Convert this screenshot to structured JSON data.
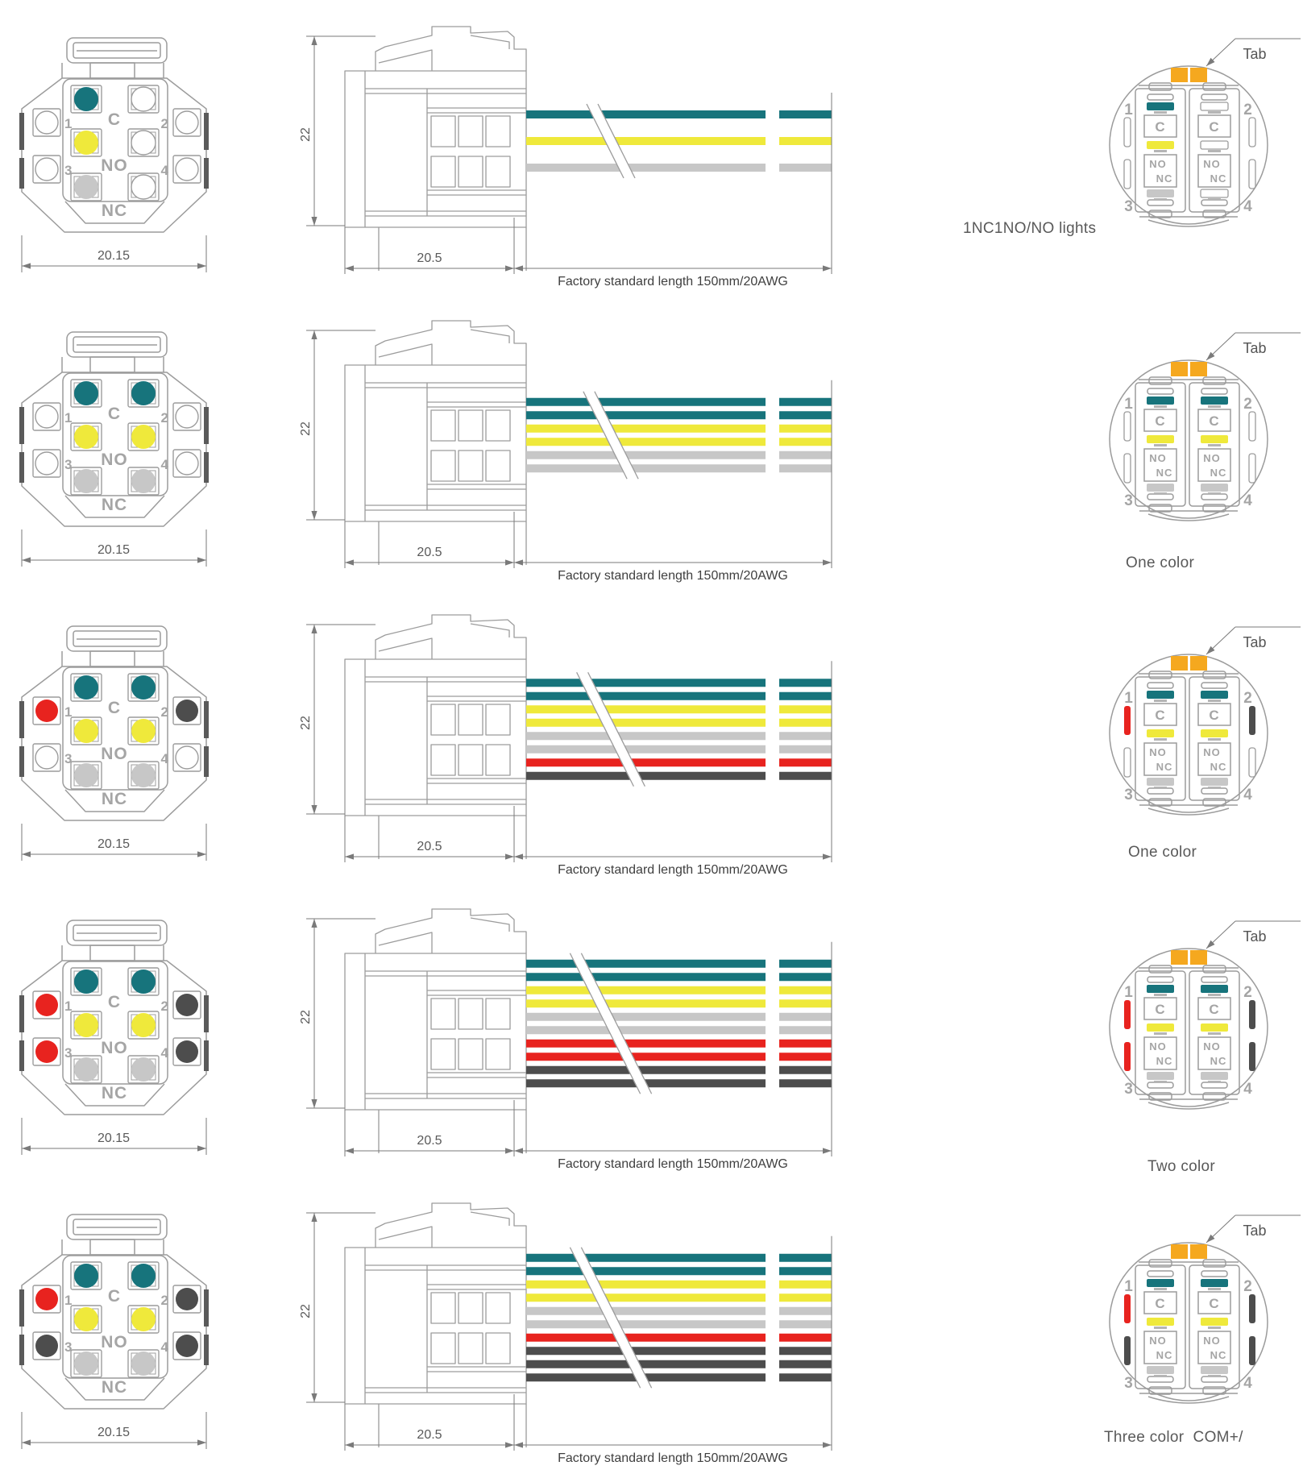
{
  "colors": {
    "teal": "#17747C",
    "yellow": "#EFE93B",
    "gray": "#C7C7C7",
    "red": "#E8231F",
    "dark": "#4D4D4D",
    "white": "#FFFFFF",
    "orange": "#F5A81F",
    "line": "#9C9C9C",
    "line_dark": "#7A7A7A",
    "notch": "#5A5A5A",
    "shadow": "#B5B5B5",
    "glyph": "#A5A5A5",
    "dim_text": "#595959",
    "note_text": "#3F3F3F"
  },
  "labels": {
    "tab": "Tab",
    "terminal_c": "C",
    "terminal_no": "NO",
    "terminal_nc": "NC",
    "pin_numbers": [
      "1",
      "2",
      "3",
      "4"
    ],
    "dim_height": "22",
    "dim_front_width": "20.15",
    "dim_body_width": "20.5",
    "length_note": "Factory standard length 150mm/20AWG"
  },
  "rows": [
    {
      "caption": "1NC1NO/NO lights",
      "front": {
        "center_left": [
          "teal",
          "yellow",
          "gray"
        ],
        "center_right": [
          "white",
          "white",
          "white"
        ],
        "corners": [
          "white",
          "white",
          "white",
          "white"
        ]
      },
      "wires": [
        "teal",
        "yellow",
        "gray"
      ],
      "back": {
        "left_block": [
          "teal",
          "yellow",
          "gray"
        ],
        "right_block": [
          "white",
          "white",
          "white"
        ],
        "edges": [
          "white",
          "white",
          "white",
          "white"
        ]
      }
    },
    {
      "caption": "One color",
      "front": {
        "center_left": [
          "teal",
          "yellow",
          "gray"
        ],
        "center_right": [
          "teal",
          "yellow",
          "gray"
        ],
        "corners": [
          "white",
          "white",
          "white",
          "white"
        ]
      },
      "wires": [
        "teal",
        "teal",
        "yellow",
        "yellow",
        "gray",
        "gray"
      ],
      "back": {
        "left_block": [
          "teal",
          "yellow",
          "gray"
        ],
        "right_block": [
          "teal",
          "yellow",
          "gray"
        ],
        "edges": [
          "white",
          "white",
          "white",
          "white"
        ]
      }
    },
    {
      "caption": "One color",
      "front": {
        "center_left": [
          "teal",
          "yellow",
          "gray"
        ],
        "center_right": [
          "teal",
          "yellow",
          "gray"
        ],
        "corners": [
          "red",
          "dark",
          "white",
          "white"
        ]
      },
      "wires": [
        "teal",
        "teal",
        "yellow",
        "yellow",
        "gray",
        "gray",
        "red",
        "dark"
      ],
      "back": {
        "left_block": [
          "teal",
          "yellow",
          "gray"
        ],
        "right_block": [
          "teal",
          "yellow",
          "gray"
        ],
        "edges": [
          "red",
          "dark",
          "white",
          "white"
        ]
      }
    },
    {
      "caption": "Two color",
      "front": {
        "center_left": [
          "teal",
          "yellow",
          "gray"
        ],
        "center_right": [
          "teal",
          "yellow",
          "gray"
        ],
        "corners": [
          "red",
          "dark",
          "red",
          "dark"
        ]
      },
      "wires": [
        "teal",
        "teal",
        "yellow",
        "yellow",
        "gray",
        "gray",
        "red",
        "red",
        "dark",
        "dark"
      ],
      "back": {
        "left_block": [
          "teal",
          "yellow",
          "gray"
        ],
        "right_block": [
          "teal",
          "yellow",
          "gray"
        ],
        "edges": [
          "red",
          "dark",
          "red",
          "dark"
        ]
      }
    },
    {
      "caption": "Three color  COM+/",
      "front": {
        "center_left": [
          "teal",
          "yellow",
          "gray"
        ],
        "center_right": [
          "teal",
          "yellow",
          "gray"
        ],
        "corners": [
          "red",
          "dark",
          "dark",
          "dark"
        ]
      },
      "wires": [
        "teal",
        "teal",
        "yellow",
        "yellow",
        "gray",
        "gray",
        "red",
        "dark",
        "dark",
        "dark"
      ],
      "back": {
        "left_block": [
          "teal",
          "yellow",
          "gray"
        ],
        "right_block": [
          "teal",
          "yellow",
          "gray"
        ],
        "edges": [
          "red",
          "dark",
          "dark",
          "dark"
        ]
      }
    }
  ]
}
